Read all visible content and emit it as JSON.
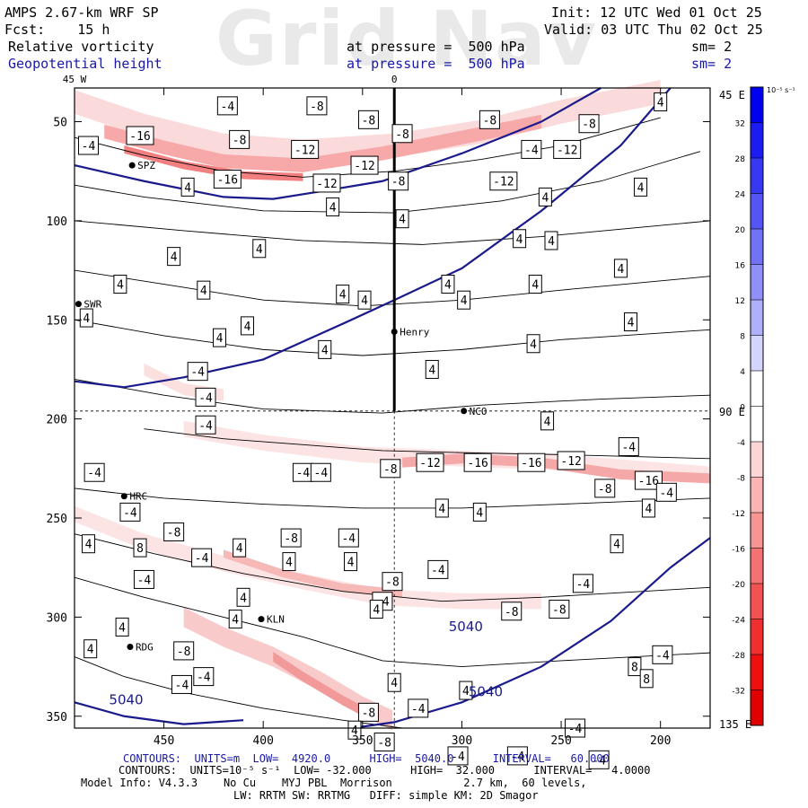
{
  "header": {
    "model": "AMPS 2.67-km WRF SP",
    "fcst": "Fcst:    15 h",
    "field1": "Relative vorticity",
    "field2": "Geopotential height",
    "pressure1": "at pressure =  500 hPa",
    "pressure2": "at pressure =  500 hPa",
    "init": "Init: 12 UTC Wed 01 Oct 25",
    "valid": "Valid: 03 UTC Thu 02 Oct 25",
    "sm1": "sm= 2",
    "sm2": "sm= 2",
    "watermark": "Grid Nav"
  },
  "footer": {
    "line1": "CONTOURS:  UNITS=m  LOW=  4920.0      HIGH=  5040.0      INTERVAL=   60.000",
    "line2": "CONTOURS:  UNITS=10⁻⁵ s⁻¹  LOW= -32.000      HIGH=  32.000      INTERVAL=   4.0000",
    "line3": "Model Info: V4.3.3    No Cu    MYJ PBL  Morrison           2.7 km,  60 levels,",
    "line4": "LW: RRTM SW: RRTMG   DIFF: simple KM: 2D Smagor"
  },
  "chart_data": {
    "type": "contour",
    "x_ticks": [
      450,
      400,
      350,
      300,
      250,
      200
    ],
    "y_ticks": [
      50,
      100,
      150,
      200,
      250,
      300,
      350
    ],
    "xlim": [
      495,
      175
    ],
    "ylim": [
      33,
      356
    ],
    "border_labels": {
      "top_left": "45 W",
      "top_center": "0",
      "right_top": "45 E",
      "right_mid": "90 E",
      "right_bottom": "135 E"
    },
    "colorbar": {
      "unit": "10⁻⁵ s⁻¹",
      "labels": [
        32,
        28,
        24,
        20,
        16,
        12,
        8,
        4,
        0,
        -4,
        -8,
        -12,
        -16,
        -20,
        -24,
        -28,
        -32
      ],
      "colors": [
        "#0000f0",
        "#1b1bf2",
        "#3838f3",
        "#5555f5",
        "#7272f6",
        "#9090f8",
        "#b0b0fa",
        "#d4d4fc",
        "#ffffff",
        "#ffffff",
        "#fcd6d6",
        "#fab4b4",
        "#f79494",
        "#f57272",
        "#f25252",
        "#f03030",
        "#ee1010",
        "#e00000"
      ]
    },
    "stations": [
      {
        "name": "SPZ",
        "x": 466,
        "y": 72
      },
      {
        "name": "SWR",
        "x": 493,
        "y": 142
      },
      {
        "name": "Henry",
        "x": 334,
        "y": 156
      },
      {
        "name": "NCO",
        "x": 299,
        "y": 196
      },
      {
        "name": "HRC",
        "x": 470,
        "y": 239
      },
      {
        "name": "KLN",
        "x": 401,
        "y": 301
      },
      {
        "name": "RDG",
        "x": 467,
        "y": 315
      }
    ],
    "vertical_line_x": 334,
    "height_contours": [
      {
        "value": 5040,
        "labels": [
          {
            "text": "5040",
            "x": 298,
            "y": 307
          },
          {
            "text": "5040",
            "x": 288,
            "y": 340
          },
          {
            "text": "5040",
            "x": 469,
            "y": 344
          }
        ]
      }
    ],
    "vorticity_labels": [
      {
        "text": "-4",
        "x": 418,
        "y": 42
      },
      {
        "text": "-8",
        "x": 373,
        "y": 42
      },
      {
        "text": "4",
        "x": 200,
        "y": 40
      },
      {
        "text": "-8",
        "x": 347,
        "y": 49
      },
      {
        "text": "-8",
        "x": 286,
        "y": 49
      },
      {
        "text": "-8",
        "x": 236,
        "y": 51
      },
      {
        "text": "-16",
        "x": 462,
        "y": 57
      },
      {
        "text": "-8",
        "x": 412,
        "y": 59
      },
      {
        "text": "-8",
        "x": 330,
        "y": 56
      },
      {
        "text": "-4",
        "x": 488,
        "y": 62
      },
      {
        "text": "-12",
        "x": 379,
        "y": 64
      },
      {
        "text": "-4",
        "x": 265,
        "y": 64
      },
      {
        "text": "-12",
        "x": 247,
        "y": 64
      },
      {
        "text": "-12",
        "x": 349,
        "y": 72
      },
      {
        "text": "-16",
        "x": 418,
        "y": 79
      },
      {
        "text": "-12",
        "x": 368,
        "y": 81
      },
      {
        "text": "-8",
        "x": 332,
        "y": 80
      },
      {
        "text": "-12",
        "x": 279,
        "y": 80
      },
      {
        "text": "4",
        "x": 438,
        "y": 83
      },
      {
        "text": "4",
        "x": 210,
        "y": 83
      },
      {
        "text": "4",
        "x": 258,
        "y": 88
      },
      {
        "text": "4",
        "x": 365,
        "y": 93
      },
      {
        "text": "4",
        "x": 330,
        "y": 99
      },
      {
        "text": "4",
        "x": 271,
        "y": 109
      },
      {
        "text": "4",
        "x": 255,
        "y": 110
      },
      {
        "text": "4",
        "x": 402,
        "y": 114
      },
      {
        "text": "4",
        "x": 445,
        "y": 118
      },
      {
        "text": "4",
        "x": 220,
        "y": 124
      },
      {
        "text": "4",
        "x": 472,
        "y": 132
      },
      {
        "text": "4",
        "x": 307,
        "y": 132
      },
      {
        "text": "4",
        "x": 263,
        "y": 132
      },
      {
        "text": "4",
        "x": 430,
        "y": 135
      },
      {
        "text": "4",
        "x": 360,
        "y": 137
      },
      {
        "text": "4",
        "x": 349,
        "y": 140
      },
      {
        "text": "4",
        "x": 299,
        "y": 140
      },
      {
        "text": "4",
        "x": 489,
        "y": 149
      },
      {
        "text": "4",
        "x": 408,
        "y": 153
      },
      {
        "text": "4",
        "x": 422,
        "y": 159
      },
      {
        "text": "4",
        "x": 215,
        "y": 151
      },
      {
        "text": "4",
        "x": 369,
        "y": 165
      },
      {
        "text": "4",
        "x": 264,
        "y": 162
      },
      {
        "text": "-4",
        "x": 433,
        "y": 176
      },
      {
        "text": "4",
        "x": 315,
        "y": 175
      },
      {
        "text": "-4",
        "x": 429,
        "y": 189
      },
      {
        "text": "4",
        "x": 257,
        "y": 201
      },
      {
        "text": "-4",
        "x": 429,
        "y": 203
      },
      {
        "text": "-4",
        "x": 216,
        "y": 214
      },
      {
        "text": "-12",
        "x": 316,
        "y": 222
      },
      {
        "text": "-16",
        "x": 292,
        "y": 222
      },
      {
        "text": "-16",
        "x": 265,
        "y": 222
      },
      {
        "text": "-12",
        "x": 245,
        "y": 221
      },
      {
        "text": "-4",
        "x": 485,
        "y": 227
      },
      {
        "text": "-4",
        "x": 380,
        "y": 227
      },
      {
        "text": "-4",
        "x": 371,
        "y": 227
      },
      {
        "text": "-8",
        "x": 336,
        "y": 225
      },
      {
        "text": "-16",
        "x": 206,
        "y": 231
      },
      {
        "text": "-8",
        "x": 228,
        "y": 235
      },
      {
        "text": "-4",
        "x": 197,
        "y": 237
      },
      {
        "text": "-4",
        "x": 467,
        "y": 247
      },
      {
        "text": "4",
        "x": 310,
        "y": 245
      },
      {
        "text": "4",
        "x": 291,
        "y": 247
      },
      {
        "text": "4",
        "x": 206,
        "y": 245
      },
      {
        "text": "-8",
        "x": 445,
        "y": 257
      },
      {
        "text": "-8",
        "x": 386,
        "y": 260
      },
      {
        "text": "-4",
        "x": 357,
        "y": 260
      },
      {
        "text": "4",
        "x": 488,
        "y": 263
      },
      {
        "text": "8",
        "x": 462,
        "y": 265
      },
      {
        "text": "4",
        "x": 412,
        "y": 265
      },
      {
        "text": "-4",
        "x": 431,
        "y": 270
      },
      {
        "text": "4",
        "x": 387,
        "y": 272
      },
      {
        "text": "4",
        "x": 356,
        "y": 272
      },
      {
        "text": "-4",
        "x": 312,
        "y": 276
      },
      {
        "text": "4",
        "x": 222,
        "y": 263
      },
      {
        "text": "-4",
        "x": 460,
        "y": 281
      },
      {
        "text": "-8",
        "x": 335,
        "y": 282
      },
      {
        "text": "-4",
        "x": 239,
        "y": 283
      },
      {
        "text": "-4",
        "x": 340,
        "y": 292
      },
      {
        "text": "4",
        "x": 410,
        "y": 290
      },
      {
        "text": "4",
        "x": 343,
        "y": 296
      },
      {
        "text": "-8",
        "x": 275,
        "y": 297
      },
      {
        "text": "-8",
        "x": 251,
        "y": 296
      },
      {
        "text": "4",
        "x": 471,
        "y": 305
      },
      {
        "text": "4",
        "x": 414,
        "y": 301
      },
      {
        "text": "-8",
        "x": 440,
        "y": 317
      },
      {
        "text": "4",
        "x": 487,
        "y": 316
      },
      {
        "text": "-4",
        "x": 199,
        "y": 319
      },
      {
        "text": "-4",
        "x": 430,
        "y": 330
      },
      {
        "text": "8",
        "x": 213,
        "y": 325
      },
      {
        "text": "8",
        "x": 207,
        "y": 331
      },
      {
        "text": "-4",
        "x": 441,
        "y": 334
      },
      {
        "text": "4",
        "x": 334,
        "y": 333
      },
      {
        "text": "4",
        "x": 298,
        "y": 337
      },
      {
        "text": "-8",
        "x": 347,
        "y": 348
      },
      {
        "text": "-4",
        "x": 322,
        "y": 346
      },
      {
        "text": "4",
        "x": 354,
        "y": 357
      },
      {
        "text": "-8",
        "x": 339,
        "y": 363
      },
      {
        "text": "-4",
        "x": 302,
        "y": 370
      },
      {
        "text": "-4",
        "x": 243,
        "y": 356
      },
      {
        "text": "-4",
        "x": 272,
        "y": 370
      },
      {
        "text": "-4",
        "x": 231,
        "y": 372
      }
    ]
  }
}
